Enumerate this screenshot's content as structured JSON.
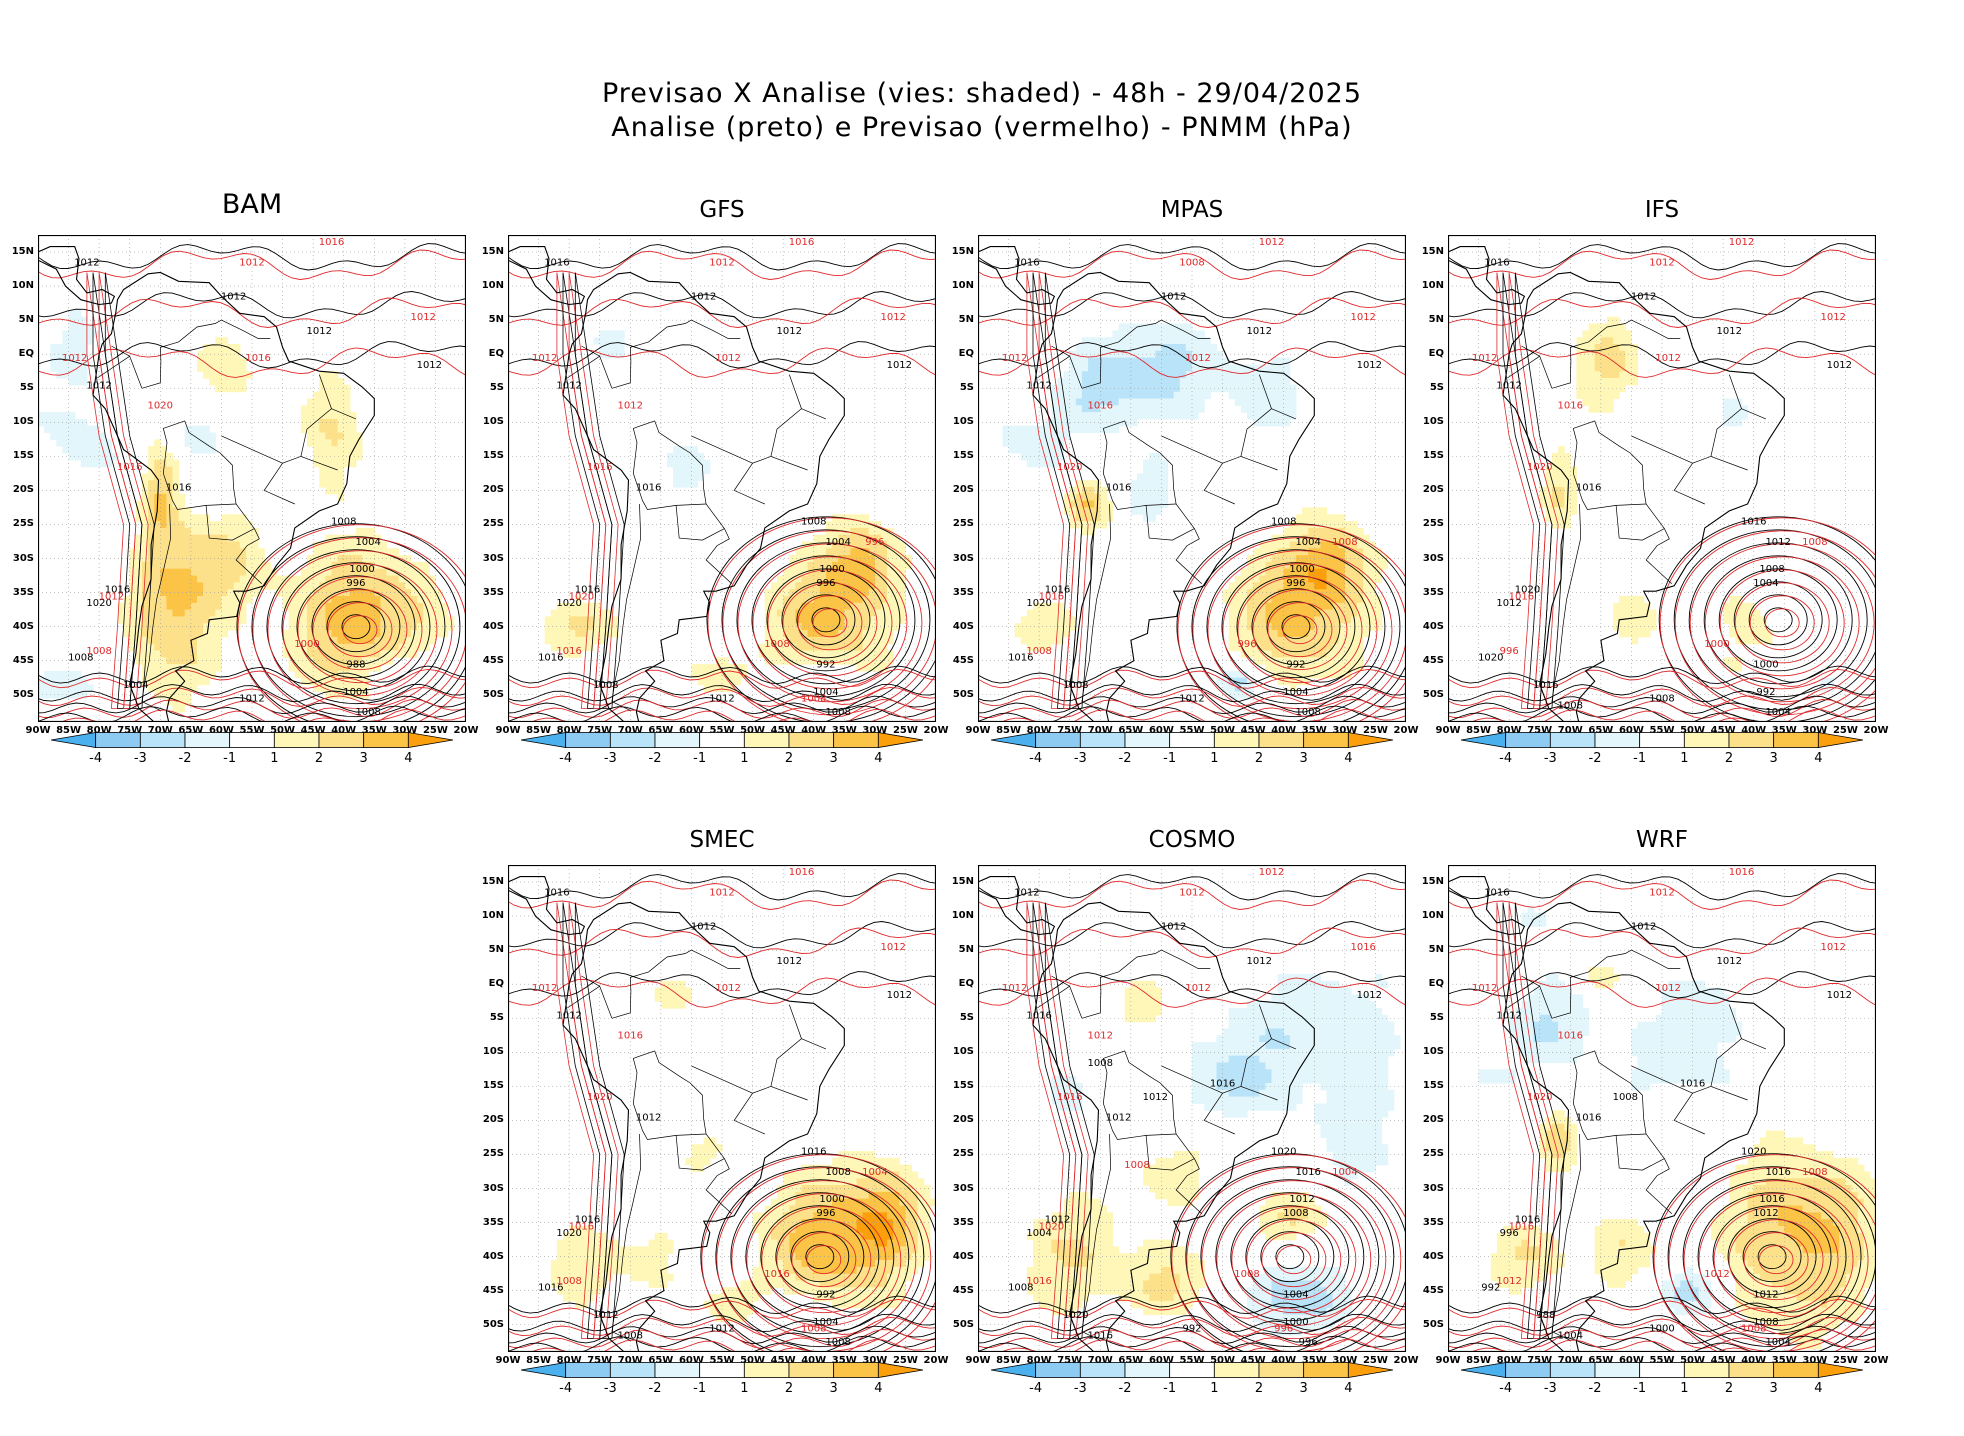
{
  "title": {
    "line1": "Previsao X Analise (vies: shaded) - 48h - 29/04/2025",
    "line2": "Analise (preto) e Previsao (vermelho) - PNMM (hPa)"
  },
  "axes": {
    "lat_labels": [
      "15N",
      "10N",
      "5N",
      "EQ",
      "5S",
      "10S",
      "15S",
      "20S",
      "25S",
      "30S",
      "35S",
      "40S",
      "45S",
      "50S"
    ],
    "lon_labels": [
      "90W",
      "85W",
      "80W",
      "75W",
      "70W",
      "65W",
      "60W",
      "55W",
      "50W",
      "45W",
      "40W",
      "35W",
      "30W",
      "25W",
      "20W"
    ]
  },
  "colorbar": {
    "labels": [
      "-4",
      "-3",
      "-2",
      "-1",
      "1",
      "2",
      "3",
      "4"
    ],
    "colors": [
      "#4ab0ee",
      "#8ecbf2",
      "#b9e3f8",
      "#e3f6fb",
      "#ffffff",
      "#fff7b8",
      "#fde18a",
      "#fcc447",
      "#fb9f0c"
    ]
  },
  "colors": {
    "analysis_contours": "#000000",
    "forecast_contours": "#e0292b",
    "land_outline": "#000000",
    "grid": "#999999"
  },
  "panels": [
    {
      "model": "BAM",
      "contours_black": [
        "1012",
        "1012",
        "1012",
        "1012",
        "1012",
        "1016",
        "1016",
        "1008",
        "1004",
        "1000",
        "996",
        "988",
        "1004",
        "1008",
        "1012",
        "1020",
        "1008",
        "1004"
      ],
      "contours_red": [
        "1016",
        "1012",
        "1012",
        "1012",
        "1016",
        "1020",
        "1016",
        "1012",
        "1008",
        "1000"
      ]
    },
    {
      "model": "GFS",
      "contours_black": [
        "1016",
        "1012",
        "1012",
        "1012",
        "1012",
        "1016",
        "1016",
        "1008",
        "1004",
        "1000",
        "996",
        "992",
        "1004",
        "1008",
        "1012",
        "1020",
        "1016",
        "1008"
      ],
      "contours_red": [
        "1016",
        "1012",
        "1012",
        "1012",
        "1012",
        "1012",
        "1016",
        "1020",
        "1016",
        "1008",
        "996",
        "1008"
      ]
    },
    {
      "model": "MPAS",
      "contours_black": [
        "1016",
        "1012",
        "1012",
        "1012",
        "1012",
        "1016",
        "1016",
        "1008",
        "1004",
        "1000",
        "996",
        "992",
        "1004",
        "1008",
        "1012",
        "1020",
        "1016",
        "1008"
      ],
      "contours_red": [
        "1012",
        "1008",
        "1012",
        "1012",
        "1012",
        "1016",
        "1020",
        "1016",
        "1008",
        "996",
        "1008"
      ]
    },
    {
      "model": "IFS",
      "contours_black": [
        "1016",
        "1012",
        "1012",
        "1012",
        "1012",
        "1016",
        "1020",
        "1016",
        "1012",
        "1008",
        "1004",
        "1000",
        "992",
        "1004",
        "1008",
        "1012",
        "1020",
        "1016",
        "1008"
      ],
      "contours_red": [
        "1012",
        "1012",
        "1012",
        "1012",
        "1012",
        "1016",
        "1020",
        "1016",
        "996",
        "1000",
        "1008"
      ]
    },
    {
      "model": "SMEC",
      "contours_black": [
        "1016",
        "1012",
        "1012",
        "1012",
        "1012",
        "1012",
        "1016",
        "1016",
        "1008",
        "1000",
        "996",
        "992",
        "1004",
        "1008",
        "1012",
        "1020",
        "1016",
        "1012",
        "1008"
      ],
      "contours_red": [
        "1016",
        "1012",
        "1012",
        "1012",
        "1012",
        "1016",
        "1020",
        "1016",
        "1008",
        "1016",
        "1004",
        "1008"
      ]
    },
    {
      "model": "COSMO",
      "contours_black": [
        "1012",
        "1012",
        "1012",
        "1012",
        "1016",
        "1012",
        "1012",
        "1020",
        "1016",
        "1012",
        "1008",
        "1004",
        "1000",
        "996",
        "992",
        "1004",
        "1008",
        "1020",
        "1016",
        "1012",
        "1016",
        "1008"
      ],
      "contours_red": [
        "1012",
        "1012",
        "1016",
        "1012",
        "1012",
        "1012",
        "1016",
        "1020",
        "1016",
        "1008",
        "1004",
        "996",
        "1008"
      ]
    },
    {
      "model": "WRF",
      "contours_black": [
        "1016",
        "1012",
        "1012",
        "1012",
        "1012",
        "1016",
        "1016",
        "1020",
        "1016",
        "1016",
        "1012",
        "1012",
        "1008",
        "1004",
        "1000",
        "996",
        "992",
        "988",
        "1004",
        "1008",
        "1016"
      ],
      "contours_red": [
        "1016",
        "1012",
        "1012",
        "1012",
        "1012",
        "1016",
        "1020",
        "1016",
        "1012",
        "1012",
        "1008",
        "1008"
      ]
    }
  ]
}
